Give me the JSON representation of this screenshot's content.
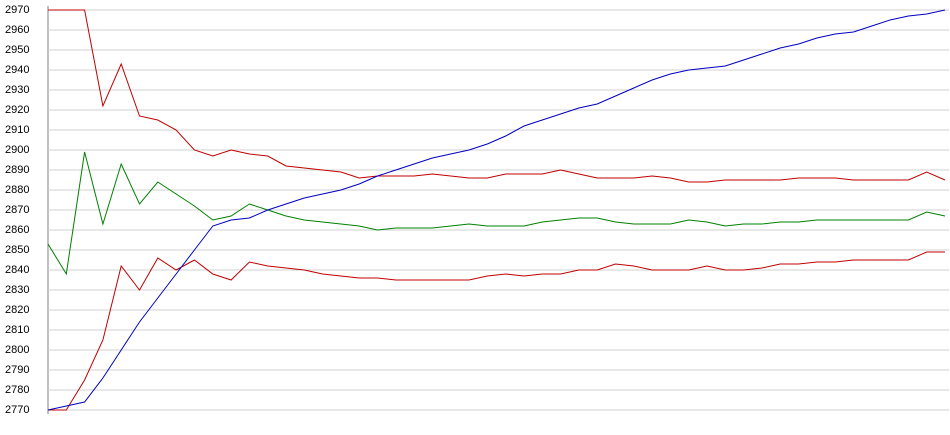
{
  "chart_data": {
    "type": "line",
    "ylim": [
      2770,
      2970
    ],
    "yticks": [
      2770,
      2780,
      2790,
      2800,
      2810,
      2820,
      2830,
      2840,
      2850,
      2860,
      2870,
      2880,
      2890,
      2900,
      2910,
      2920,
      2930,
      2940,
      2950,
      2960,
      2970
    ],
    "grid": true,
    "series": [
      {
        "color": "#c00000",
        "values": [
          2970,
          2970,
          2970,
          2922,
          2943,
          2917,
          2915,
          2910,
          2900,
          2897,
          2900,
          2898,
          2897,
          2892,
          2891,
          2890,
          2889,
          2886,
          2887,
          2887,
          2887,
          2888,
          2887,
          2886,
          2886,
          2888,
          2888,
          2888,
          2890,
          2888,
          2886,
          2886,
          2886,
          2887,
          2886,
          2884,
          2884,
          2885,
          2885,
          2885,
          2885,
          2886,
          2886,
          2886,
          2885,
          2885,
          2885,
          2885,
          2889,
          2885
        ]
      },
      {
        "color": "#008000",
        "values": [
          2853,
          2838,
          2899,
          2863,
          2893,
          2873,
          2884,
          2878,
          2872,
          2865,
          2867,
          2873,
          2870,
          2867,
          2865,
          2864,
          2863,
          2862,
          2860,
          2861,
          2861,
          2861,
          2862,
          2863,
          2862,
          2862,
          2862,
          2864,
          2865,
          2866,
          2866,
          2864,
          2863,
          2863,
          2863,
          2865,
          2864,
          2862,
          2863,
          2863,
          2864,
          2864,
          2865,
          2865,
          2865,
          2865,
          2865,
          2865,
          2869,
          2867
        ]
      },
      {
        "color": "#c00000",
        "values": [
          2770,
          2770,
          2785,
          2805,
          2842,
          2830,
          2846,
          2840,
          2845,
          2838,
          2835,
          2844,
          2842,
          2841,
          2840,
          2838,
          2837,
          2836,
          2836,
          2835,
          2835,
          2835,
          2835,
          2835,
          2837,
          2838,
          2837,
          2838,
          2838,
          2840,
          2840,
          2843,
          2842,
          2840,
          2840,
          2840,
          2842,
          2840,
          2840,
          2841,
          2843,
          2843,
          2844,
          2844,
          2845,
          2845,
          2845,
          2845,
          2849,
          2849
        ]
      },
      {
        "color": "#0000c0",
        "values": [
          2770,
          2772,
          2774,
          2786,
          2800,
          2814,
          2826,
          2838,
          2850,
          2862,
          2865,
          2866,
          2870,
          2873,
          2876,
          2878,
          2880,
          2883,
          2887,
          2890,
          2893,
          2896,
          2898,
          2900,
          2903,
          2907,
          2912,
          2915,
          2918,
          2921,
          2923,
          2927,
          2931,
          2935,
          2938,
          2940,
          2941,
          2942,
          2945,
          2948,
          2951,
          2953,
          2956,
          2958,
          2959,
          2962,
          2965,
          2967,
          2968,
          2970
        ]
      }
    ]
  }
}
